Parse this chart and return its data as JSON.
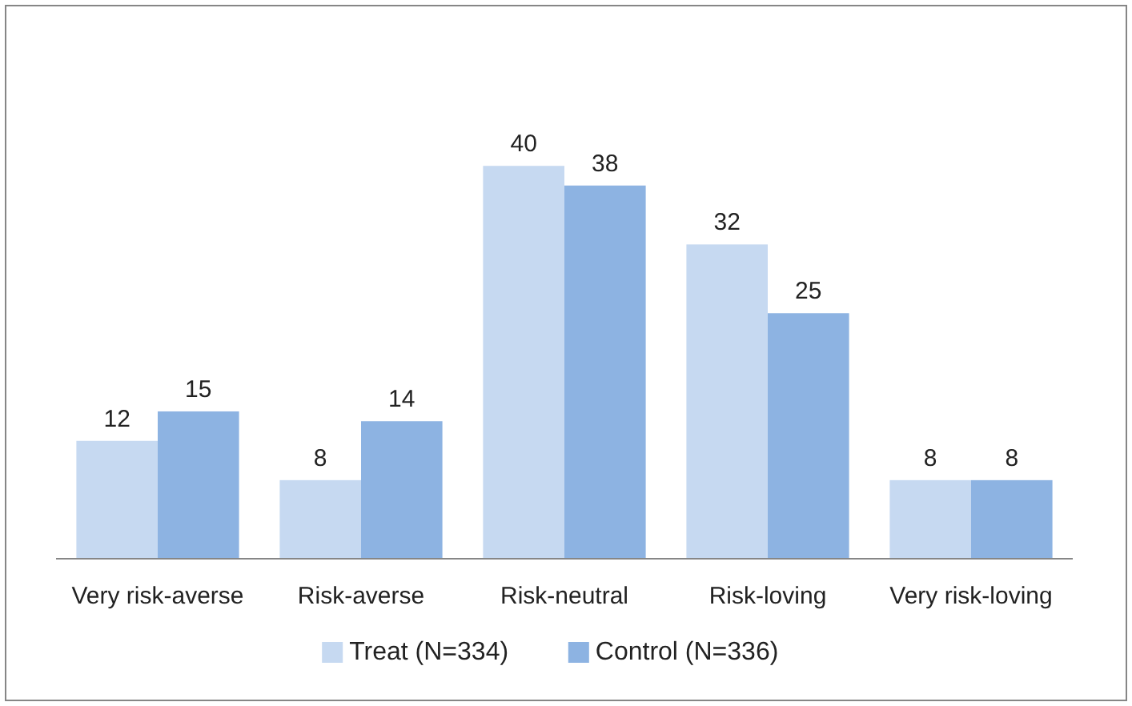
{
  "chart_data": {
    "type": "bar",
    "categories": [
      "Very risk-averse",
      "Risk-averse",
      "Risk-neutral",
      "Risk-loving",
      "Very risk-loving"
    ],
    "series": [
      {
        "name": "Treat (N=334)",
        "color": "#c6d9f1",
        "values": [
          12,
          8,
          40,
          32,
          8
        ]
      },
      {
        "name": "Control (N=336)",
        "color": "#8db3e2",
        "values": [
          15,
          14,
          38,
          25,
          8
        ]
      }
    ],
    "data_labels": true,
    "legend": "bottom"
  }
}
